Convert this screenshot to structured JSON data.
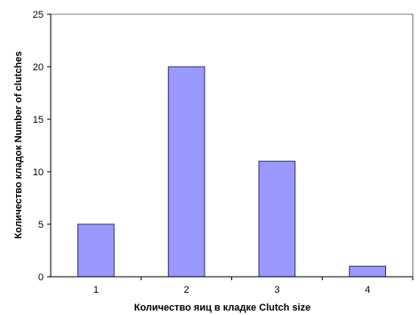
{
  "chart_data": {
    "type": "bar",
    "title": "",
    "xlabel": "Количество яиц в кладке Clutch size",
    "ylabel": "Количество кладок Number of clutches",
    "categories": [
      "1",
      "2",
      "3",
      "4"
    ],
    "values": [
      5,
      20,
      11,
      1
    ],
    "ylim": [
      0,
      25
    ],
    "yticks": [
      "0",
      "5",
      "10",
      "15",
      "20",
      "25"
    ],
    "grid": false,
    "legend": "none",
    "bar_color": "#9999ff",
    "bar_edge_color": "#333366"
  }
}
